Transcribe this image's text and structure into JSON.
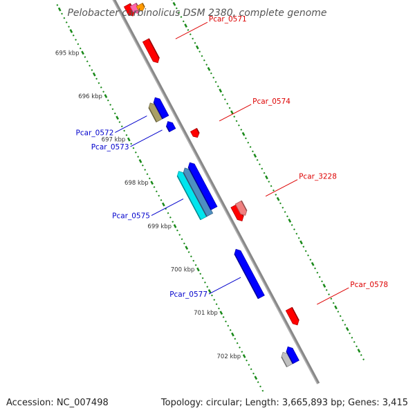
{
  "title": "Pelobacter carbinolicus DSM 2380, complete genome",
  "footer": {
    "accession": "Accession: NC_007498",
    "summary": "Topology: circular; Length: 3,665,893 bp; Genes: 3,415"
  },
  "colors": {
    "forward_strand": "#ff0000",
    "reverse_strand": "#0000ff",
    "axis": "#888888",
    "tick_marks": "#1a8a1a",
    "label_forward": "#dd0000",
    "label_reverse": "#0000cc"
  },
  "map": {
    "ticks": [
      {
        "kbp": 695,
        "label": "695 kbp"
      },
      {
        "kbp": 696,
        "label": "696 kbp"
      },
      {
        "kbp": 697,
        "label": "697 kbp"
      },
      {
        "kbp": 698,
        "label": "698 kbp"
      },
      {
        "kbp": 699,
        "label": "699 kbp"
      },
      {
        "kbp": 700,
        "label": "700 kbp"
      },
      {
        "kbp": 701,
        "label": "701 kbp"
      },
      {
        "kbp": 702,
        "label": "702 kbp"
      }
    ],
    "genes": [
      {
        "strand": "+",
        "ring": 1,
        "start_kbp": 694.57,
        "end_kbp": 694.82,
        "color": "#ff0000",
        "label": ""
      },
      {
        "strand": "+",
        "ring": 2,
        "start_kbp": 694.62,
        "end_kbp": 694.82,
        "color": "#ff66aa",
        "label": ""
      },
      {
        "strand": "+",
        "ring": 3,
        "start_kbp": 694.68,
        "end_kbp": 694.82,
        "color": "#ff9900",
        "label": ""
      },
      {
        "strand": "+",
        "ring": 1,
        "start_kbp": 695.38,
        "end_kbp": 695.9,
        "color": "#ff0000",
        "label": "Pcar_0571"
      },
      {
        "strand": "-",
        "ring": 2,
        "start_kbp": 696.55,
        "end_kbp": 696.95,
        "color": "#aaa066",
        "label": "Pcar_0572"
      },
      {
        "strand": "-",
        "ring": 1,
        "start_kbp": 696.5,
        "end_kbp": 696.95,
        "color": "#0000ff",
        "label": ""
      },
      {
        "strand": "-",
        "ring": 1,
        "start_kbp": 697.05,
        "end_kbp": 697.25,
        "color": "#0000ff",
        "label": "Pcar_0573"
      },
      {
        "strand": "+",
        "ring": 1,
        "start_kbp": 697.45,
        "end_kbp": 697.62,
        "color": "#ff0000",
        "label": "Pcar_0574"
      },
      {
        "strand": "-",
        "ring": 3,
        "start_kbp": 698.05,
        "end_kbp": 699.13,
        "color": "#00e5ee",
        "label": "Pcar_0575"
      },
      {
        "strand": "-",
        "ring": 2,
        "start_kbp": 698.05,
        "end_kbp": 699.13,
        "color": "#4e8fc0",
        "label": ""
      },
      {
        "strand": "-",
        "ring": 1,
        "start_kbp": 698.0,
        "end_kbp": 699.05,
        "color": "#0000ff",
        "label": ""
      },
      {
        "strand": "+",
        "ring": 1,
        "start_kbp": 699.2,
        "end_kbp": 699.55,
        "color": "#ff0000",
        "label": ""
      },
      {
        "strand": "+",
        "ring": 2,
        "start_kbp": 699.18,
        "end_kbp": 699.48,
        "color": "#f08080",
        "label": "Pcar_3228"
      },
      {
        "strand": "-",
        "ring": 1,
        "start_kbp": 700.0,
        "end_kbp": 701.1,
        "color": "#0000ff",
        "label": "Pcar_0577"
      },
      {
        "strand": "+",
        "ring": 1,
        "start_kbp": 701.58,
        "end_kbp": 701.95,
        "color": "#ff0000",
        "label": "Pcar_0578"
      },
      {
        "strand": "-",
        "ring": 2,
        "start_kbp": 702.3,
        "end_kbp": 702.6,
        "color": "#c0c0c0",
        "label": ""
      },
      {
        "strand": "-",
        "ring": 1,
        "start_kbp": 702.25,
        "end_kbp": 702.6,
        "color": "#0000ff",
        "label": ""
      }
    ]
  }
}
